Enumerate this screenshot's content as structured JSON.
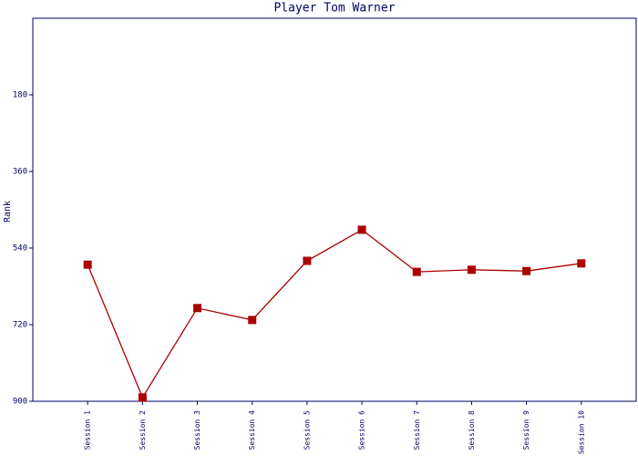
{
  "chart_data": {
    "type": "line",
    "title": "Player Tom Warner",
    "y_label": "Rank",
    "categories": [
      "Session 1",
      "Session 2",
      "Session 3",
      "Session 4",
      "Session 5",
      "Session 6",
      "Session 7",
      "Session 8",
      "Session 9",
      "Session 10"
    ],
    "series": [
      {
        "name": "Rank",
        "color": "#aa0000",
        "values": [
          579,
          891,
          681,
          709,
          570,
          497,
          596,
          591,
          594,
          576
        ]
      }
    ],
    "ylim": [
      0,
      900
    ],
    "yticks": [
      180,
      360,
      540,
      720,
      900
    ],
    "y_inverted": true,
    "grid": false
  }
}
